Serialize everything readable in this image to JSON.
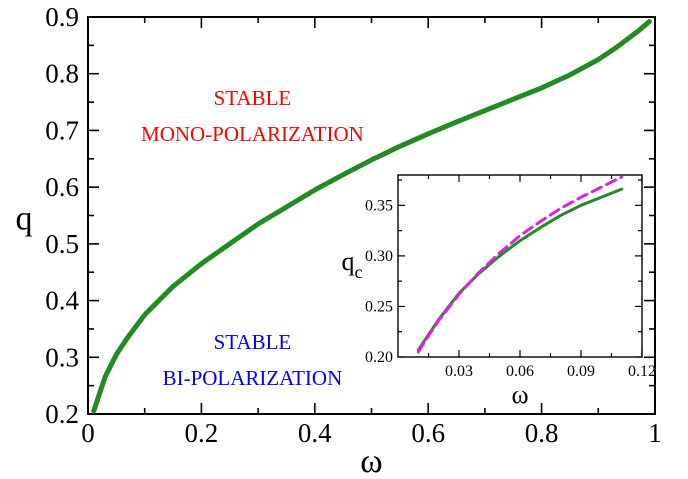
{
  "chart_data": [
    {
      "type": "line",
      "xlabel": "ω",
      "ylabel": "q",
      "xlim": [
        0,
        1
      ],
      "ylim": [
        0.2,
        0.9
      ],
      "xticks": [
        0,
        0.2,
        0.4,
        0.6,
        0.8,
        1
      ],
      "xtick_labels": [
        "0",
        "0.2",
        "0.4",
        "0.6",
        "0.8",
        "1"
      ],
      "yticks": [
        0.2,
        0.3,
        0.4,
        0.5,
        0.6,
        0.7,
        0.8,
        0.9
      ],
      "ytick_labels": [
        "0.2",
        "0.3",
        "0.4",
        "0.5",
        "0.6",
        "0.7",
        "0.8",
        "0.9"
      ],
      "grid": false,
      "series": [
        {
          "color": "#228B22",
          "style": "solid",
          "x": [
            0.01,
            0.03,
            0.05,
            0.07,
            0.1,
            0.15,
            0.2,
            0.25,
            0.3,
            0.35,
            0.4,
            0.45,
            0.5,
            0.55,
            0.6,
            0.65,
            0.7,
            0.75,
            0.8,
            0.85,
            0.9,
            0.93,
            0.95,
            0.97,
            0.99
          ],
          "y": [
            0.205,
            0.265,
            0.305,
            0.335,
            0.375,
            0.425,
            0.465,
            0.5,
            0.535,
            0.565,
            0.595,
            0.622,
            0.648,
            0.672,
            0.694,
            0.715,
            0.735,
            0.755,
            0.775,
            0.798,
            0.825,
            0.845,
            0.86,
            0.875,
            0.892
          ]
        }
      ],
      "annotations": [
        {
          "lines": [
            "STABLE",
            "MONO-POLARIZATION"
          ],
          "color": "#ff0000",
          "x": 0.29,
          "y": 0.745
        },
        {
          "lines": [
            "STABLE",
            "BI-POLARIZATION"
          ],
          "color": "#0000ff",
          "x": 0.29,
          "y": 0.315
        }
      ]
    },
    {
      "type": "line",
      "inset": true,
      "xlabel": "ω",
      "ylabel": "q",
      "ylabel_subscript": "c",
      "xlim": [
        0,
        0.12
      ],
      "ylim": [
        0.2,
        0.38
      ],
      "xticks": [
        0.03,
        0.06,
        0.09,
        0.12
      ],
      "xtick_labels": [
        "0.03",
        "0.06",
        "0.09",
        "0.12"
      ],
      "yticks": [
        0.2,
        0.25,
        0.3,
        0.35
      ],
      "ytick_labels": [
        "0.20",
        "0.25",
        "0.30",
        "0.35"
      ],
      "grid": false,
      "series": [
        {
          "color": "#228B22",
          "style": "solid",
          "x": [
            0.01,
            0.015,
            0.02,
            0.03,
            0.04,
            0.05,
            0.06,
            0.07,
            0.08,
            0.09,
            0.1,
            0.11
          ],
          "y": [
            0.207,
            0.222,
            0.237,
            0.263,
            0.283,
            0.3,
            0.315,
            0.328,
            0.34,
            0.35,
            0.358,
            0.366
          ]
        },
        {
          "color": "#e020e0",
          "style": "dashed",
          "x": [
            0.01,
            0.015,
            0.02,
            0.03,
            0.04,
            0.05,
            0.06,
            0.07,
            0.08,
            0.09,
            0.1,
            0.11
          ],
          "y": [
            0.205,
            0.221,
            0.236,
            0.262,
            0.284,
            0.303,
            0.32,
            0.334,
            0.347,
            0.358,
            0.368,
            0.378
          ]
        }
      ]
    }
  ]
}
